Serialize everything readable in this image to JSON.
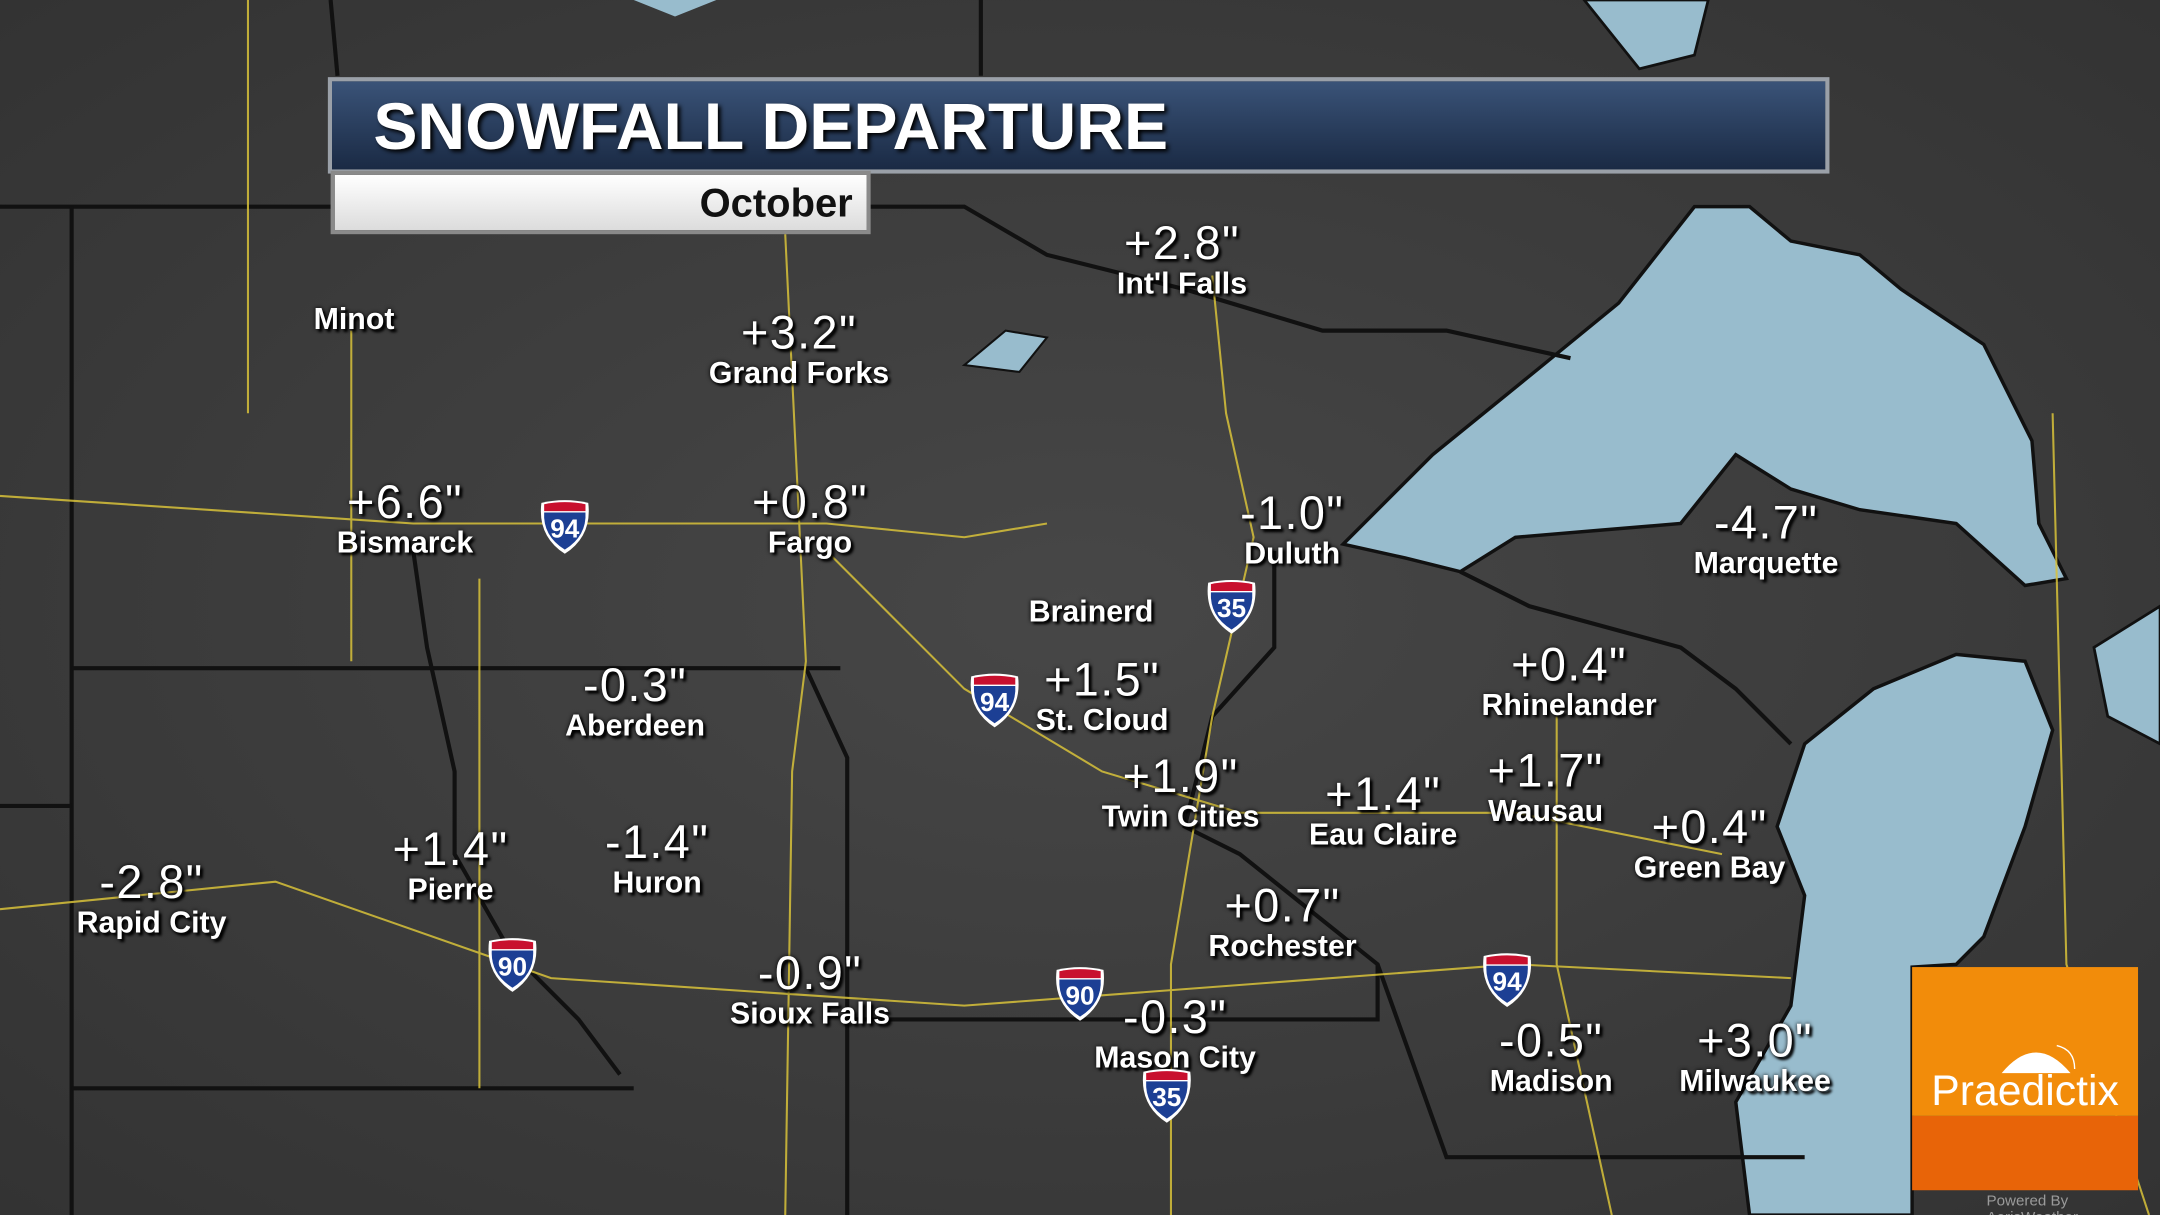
{
  "title": "SNOWFALL DEPARTURE",
  "subtitle": "October",
  "colors": {
    "land": "#3d3d3d",
    "water": "#98bccd",
    "borders": "#d8c23a",
    "header": "#1f3150",
    "logo_orange": "#f28c0a",
    "logo_dark_orange": "#e86408"
  },
  "cities": [
    {
      "name": "Int'l Falls",
      "value": "+2.8\""
    },
    {
      "name": "Grand Forks",
      "value": "+3.2\""
    },
    {
      "name": "Minot",
      "value": ""
    },
    {
      "name": "Bismarck",
      "value": "+6.6\""
    },
    {
      "name": "Fargo",
      "value": "+0.8\""
    },
    {
      "name": "Duluth",
      "value": "-1.0\""
    },
    {
      "name": "Marquette",
      "value": "-4.7\""
    },
    {
      "name": "Brainerd",
      "value": ""
    },
    {
      "name": "Aberdeen",
      "value": "-0.3\""
    },
    {
      "name": "St. Cloud",
      "value": "+1.5\""
    },
    {
      "name": "Rhinelander",
      "value": "+0.4\""
    },
    {
      "name": "Twin Cities",
      "value": "+1.9\""
    },
    {
      "name": "Eau Claire",
      "value": "+1.4\""
    },
    {
      "name": "Wausau",
      "value": "+1.7\""
    },
    {
      "name": "Green Bay",
      "value": "+0.4\""
    },
    {
      "name": "Rapid City",
      "value": "-2.8\""
    },
    {
      "name": "Pierre",
      "value": "+1.4\""
    },
    {
      "name": "Huron",
      "value": "-1.4\""
    },
    {
      "name": "Rochester",
      "value": "+0.7\""
    },
    {
      "name": "Sioux Falls",
      "value": "-0.9\""
    },
    {
      "name": "Mason City",
      "value": "-0.3\""
    },
    {
      "name": "Madison",
      "value": "-0.5\""
    },
    {
      "name": "Milwaukee",
      "value": "+3.0\""
    }
  ],
  "shields": [
    "94",
    "94",
    "94",
    "35",
    "35",
    "90",
    "90"
  ],
  "logo": {
    "text": "Praedictix",
    "icon": "umbrella-icon"
  },
  "powered_by": "Powered By AerisWeather"
}
